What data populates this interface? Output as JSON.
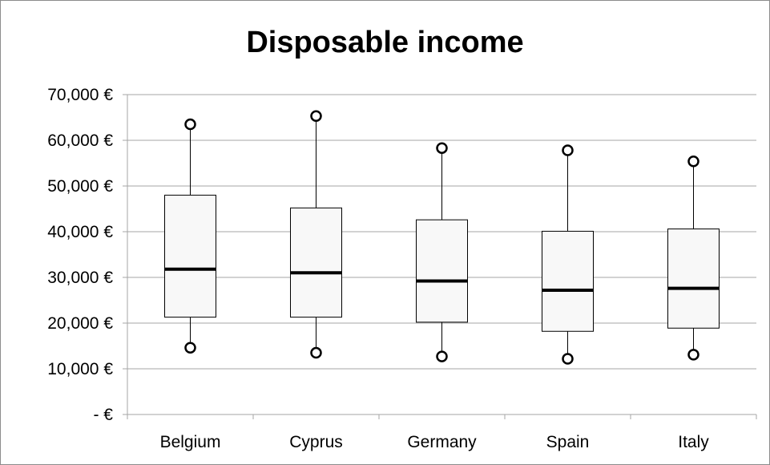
{
  "chart_data": {
    "type": "boxplot",
    "title": "Disposable income",
    "xlabel": "",
    "ylabel": "",
    "ylim": [
      0,
      70000
    ],
    "yticks": [
      0,
      10000,
      20000,
      30000,
      40000,
      50000,
      60000,
      70000
    ],
    "ytick_labels": [
      "-  €",
      "10,000 €",
      "20,000 €",
      "30,000 €",
      "40,000 €",
      "50,000 €",
      "60,000 €",
      "70,000 €"
    ],
    "grid": true,
    "legend": "none",
    "colors": {
      "box_fill": "#f8f8f8",
      "box_stroke": "#000000",
      "median": "#000000",
      "grid": "#a6a6a6",
      "axis": "#a6a6a6"
    },
    "categories": [
      "Belgium",
      "Cyprus",
      "Germany",
      "Spain",
      "Italy"
    ],
    "boxes": [
      {
        "category": "Belgium",
        "whisker_low": 15300,
        "q1": 21300,
        "median": 31800,
        "q3": 48000,
        "whisker_high": 62800,
        "outliers": [
          14600,
          63500
        ]
      },
      {
        "category": "Cyprus",
        "whisker_low": 14200,
        "q1": 21300,
        "median": 31000,
        "q3": 45200,
        "whisker_high": 64500,
        "outliers": [
          13500,
          65300
        ]
      },
      {
        "category": "Germany",
        "whisker_low": 13300,
        "q1": 20200,
        "median": 29200,
        "q3": 42600,
        "whisker_high": 57500,
        "outliers": [
          12700,
          58300
        ]
      },
      {
        "category": "Spain",
        "whisker_low": 12800,
        "q1": 18200,
        "median": 27200,
        "q3": 40100,
        "whisker_high": 57100,
        "outliers": [
          12200,
          57800
        ]
      },
      {
        "category": "Italy",
        "whisker_low": 13700,
        "q1": 18900,
        "median": 27600,
        "q3": 40600,
        "whisker_high": 54700,
        "outliers": [
          13100,
          55400
        ]
      }
    ]
  }
}
